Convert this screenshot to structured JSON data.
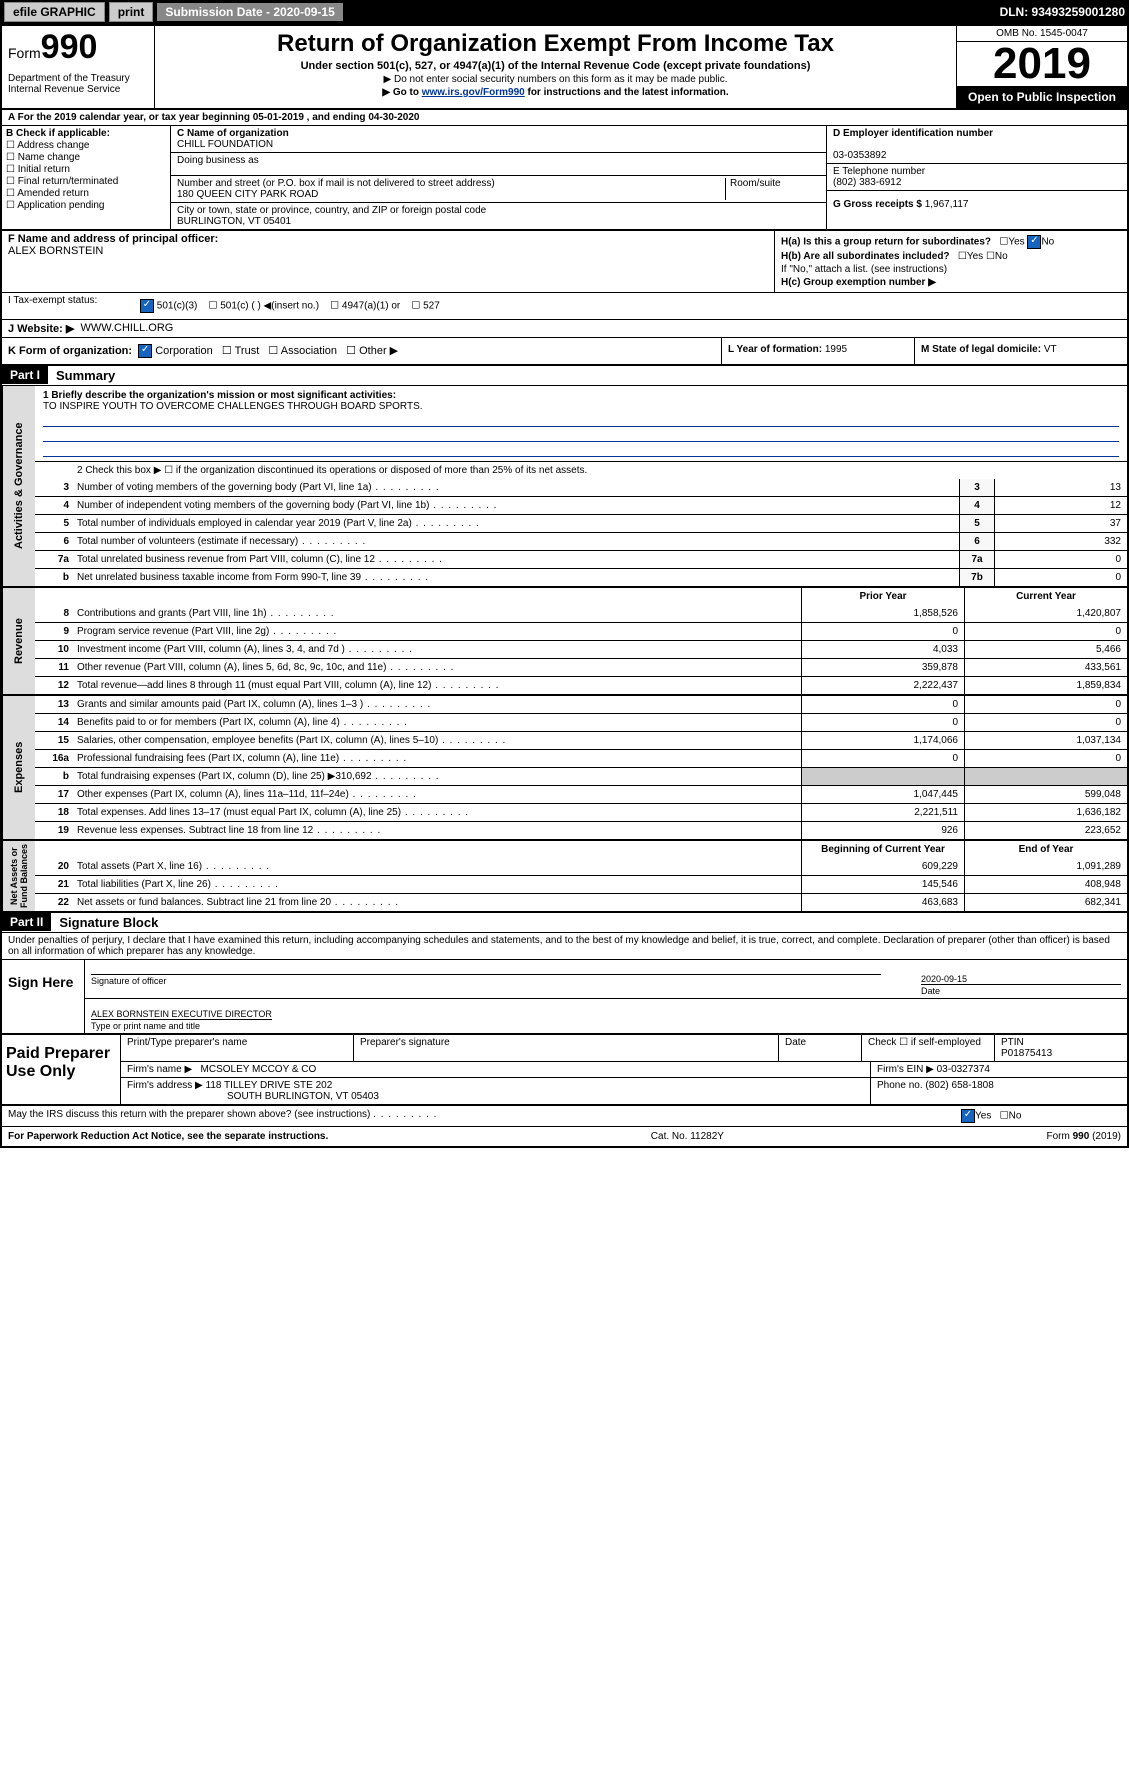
{
  "topbar": {
    "efile": "efile GRAPHIC",
    "print": "print",
    "subdate_label": "Submission Date - 2020-09-15",
    "dln": "DLN: 93493259001280"
  },
  "header": {
    "form_prefix": "Form",
    "form_num": "990",
    "dept": "Department of the Treasury\nInternal Revenue Service",
    "title": "Return of Organization Exempt From Income Tax",
    "sub1": "Under section 501(c), 527, or 4947(a)(1) of the Internal Revenue Code (except private foundations)",
    "sub2": "▶ Do not enter social security numbers on this form as it may be made public.",
    "sub3_pre": "▶ Go to ",
    "sub3_link": "www.irs.gov/Form990",
    "sub3_post": " for instructions and the latest information.",
    "omb": "OMB No. 1545-0047",
    "year": "2019",
    "open": "Open to Public Inspection"
  },
  "a_row": "A For the 2019 calendar year, or tax year beginning 05-01-2019     , and ending 04-30-2020",
  "b": {
    "label": "B Check if applicable:",
    "items": [
      "Address change",
      "Name change",
      "Initial return",
      "Final return/terminated",
      "Amended return",
      "Application pending"
    ]
  },
  "c": {
    "name_label": "C Name of organization",
    "name": "CHILL FOUNDATION",
    "dba_label": "Doing business as",
    "addr_label": "Number and street (or P.O. box if mail is not delivered to street address)",
    "room_label": "Room/suite",
    "addr": "180 QUEEN CITY PARK ROAD",
    "city_label": "City or town, state or province, country, and ZIP or foreign postal code",
    "city": "BURLINGTON, VT  05401"
  },
  "d": {
    "label": "D Employer identification number",
    "value": "03-0353892"
  },
  "e": {
    "label": "E Telephone number",
    "value": "(802) 383-6912"
  },
  "g": {
    "label": "G Gross receipts $",
    "value": "1,967,117"
  },
  "f": {
    "label": "F  Name and address of principal officer:",
    "value": "ALEX BORNSTEIN"
  },
  "h": {
    "a": "H(a)  Is this a group return for subordinates?",
    "a_yes": "Yes",
    "a_no": "No",
    "b": "H(b)  Are all subordinates included?",
    "b_note": "If \"No,\" attach a list. (see instructions)",
    "c": "H(c)  Group exemption number ▶"
  },
  "i": {
    "label": "I  Tax-exempt status:",
    "opts": [
      "501(c)(3)",
      "501(c) (  ) ◀(insert no.)",
      "4947(a)(1) or",
      "527"
    ]
  },
  "j": {
    "label": "J  Website: ▶",
    "value": "WWW.CHILL.ORG"
  },
  "k": {
    "label": "K Form of organization:",
    "opts": [
      "Corporation",
      "Trust",
      "Association",
      "Other ▶"
    ]
  },
  "l": {
    "label": "L Year of formation:",
    "value": "1995"
  },
  "m": {
    "label": "M State of legal domicile:",
    "value": "VT"
  },
  "part1": {
    "header": "Part I",
    "title": "Summary",
    "mission_label": "1  Briefly describe the organization's mission or most significant activities:",
    "mission": "TO INSPIRE YOUTH TO OVERCOME CHALLENGES THROUGH BOARD SPORTS.",
    "line2": "2   Check this box ▶ ☐  if the organization discontinued its operations or disposed of more than 25% of its net assets.",
    "governance": [
      {
        "n": "3",
        "t": "Number of voting members of the governing body (Part VI, line 1a)",
        "b": "3",
        "v": "13"
      },
      {
        "n": "4",
        "t": "Number of independent voting members of the governing body (Part VI, line 1b)",
        "b": "4",
        "v": "12"
      },
      {
        "n": "5",
        "t": "Total number of individuals employed in calendar year 2019 (Part V, line 2a)",
        "b": "5",
        "v": "37"
      },
      {
        "n": "6",
        "t": "Total number of volunteers (estimate if necessary)",
        "b": "6",
        "v": "332"
      },
      {
        "n": "7a",
        "t": "Total unrelated business revenue from Part VIII, column (C), line 12",
        "b": "7a",
        "v": "0"
      },
      {
        "n": "b",
        "t": "Net unrelated business taxable income from Form 990-T, line 39",
        "b": "7b",
        "v": "0"
      }
    ],
    "prior_label": "Prior Year",
    "current_label": "Current Year",
    "revenue": [
      {
        "n": "8",
        "t": "Contributions and grants (Part VIII, line 1h)",
        "p": "1,858,526",
        "c": "1,420,807"
      },
      {
        "n": "9",
        "t": "Program service revenue (Part VIII, line 2g)",
        "p": "0",
        "c": "0"
      },
      {
        "n": "10",
        "t": "Investment income (Part VIII, column (A), lines 3, 4, and 7d )",
        "p": "4,033",
        "c": "5,466"
      },
      {
        "n": "11",
        "t": "Other revenue (Part VIII, column (A), lines 5, 6d, 8c, 9c, 10c, and 11e)",
        "p": "359,878",
        "c": "433,561"
      },
      {
        "n": "12",
        "t": "Total revenue—add lines 8 through 11 (must equal Part VIII, column (A), line 12)",
        "p": "2,222,437",
        "c": "1,859,834"
      }
    ],
    "expenses": [
      {
        "n": "13",
        "t": "Grants and similar amounts paid (Part IX, column (A), lines 1–3 )",
        "p": "0",
        "c": "0"
      },
      {
        "n": "14",
        "t": "Benefits paid to or for members (Part IX, column (A), line 4)",
        "p": "0",
        "c": "0"
      },
      {
        "n": "15",
        "t": "Salaries, other compensation, employee benefits (Part IX, column (A), lines 5–10)",
        "p": "1,174,066",
        "c": "1,037,134"
      },
      {
        "n": "16a",
        "t": "Professional fundraising fees (Part IX, column (A), line 11e)",
        "p": "0",
        "c": "0"
      },
      {
        "n": "b",
        "t": "Total fundraising expenses (Part IX, column (D), line 25) ▶310,692",
        "p": "",
        "c": ""
      },
      {
        "n": "17",
        "t": "Other expenses (Part IX, column (A), lines 11a–11d, 11f–24e)",
        "p": "1,047,445",
        "c": "599,048"
      },
      {
        "n": "18",
        "t": "Total expenses. Add lines 13–17 (must equal Part IX, column (A), line 25)",
        "p": "2,221,511",
        "c": "1,636,182"
      },
      {
        "n": "19",
        "t": "Revenue less expenses. Subtract line 18 from line 12",
        "p": "926",
        "c": "223,652"
      }
    ],
    "beg_label": "Beginning of Current Year",
    "end_label": "End of Year",
    "netassets": [
      {
        "n": "20",
        "t": "Total assets (Part X, line 16)",
        "p": "609,229",
        "c": "1,091,289"
      },
      {
        "n": "21",
        "t": "Total liabilities (Part X, line 26)",
        "p": "145,546",
        "c": "408,948"
      },
      {
        "n": "22",
        "t": "Net assets or fund balances. Subtract line 21 from line 20",
        "p": "463,683",
        "c": "682,341"
      }
    ]
  },
  "part2": {
    "header": "Part II",
    "title": "Signature Block",
    "perjury": "Under penalties of perjury, I declare that I have examined this return, including accompanying schedules and statements, and to the best of my knowledge and belief, it is true, correct, and complete. Declaration of preparer (other than officer) is based on all information of which preparer has any knowledge."
  },
  "sign": {
    "label": "Sign Here",
    "sig_label": "Signature of officer",
    "date": "2020-09-15",
    "date_label": "Date",
    "name": "ALEX BORNSTEIN  EXECUTIVE DIRECTOR",
    "name_label": "Type or print name and title"
  },
  "paid": {
    "label": "Paid Preparer Use Only",
    "col1": "Print/Type preparer's name",
    "col2": "Preparer's signature",
    "col3": "Date",
    "col4a": "Check ☐ if self-employed",
    "col4b_label": "PTIN",
    "col4b": "P01875413",
    "firm_label": "Firm's name    ▶",
    "firm": "MCSOLEY MCCOY & CO",
    "ein_label": "Firm's EIN ▶",
    "ein": "03-0327374",
    "addr_label": "Firm's address ▶",
    "addr1": "118 TILLEY DRIVE STE 202",
    "addr2": "SOUTH BURLINGTON, VT  05403",
    "phone_label": "Phone no.",
    "phone": "(802) 658-1808"
  },
  "discuss": {
    "text": "May the IRS discuss this return with the preparer shown above? (see instructions)",
    "yes": "Yes",
    "no": "No"
  },
  "footer": {
    "left": "For Paperwork Reduction Act Notice, see the separate instructions.",
    "mid": "Cat. No. 11282Y",
    "right": "Form 990 (2019)"
  },
  "colors": {
    "link": "#003399",
    "checked": "#1565c0",
    "vlabel_bg": "#dddddd"
  }
}
